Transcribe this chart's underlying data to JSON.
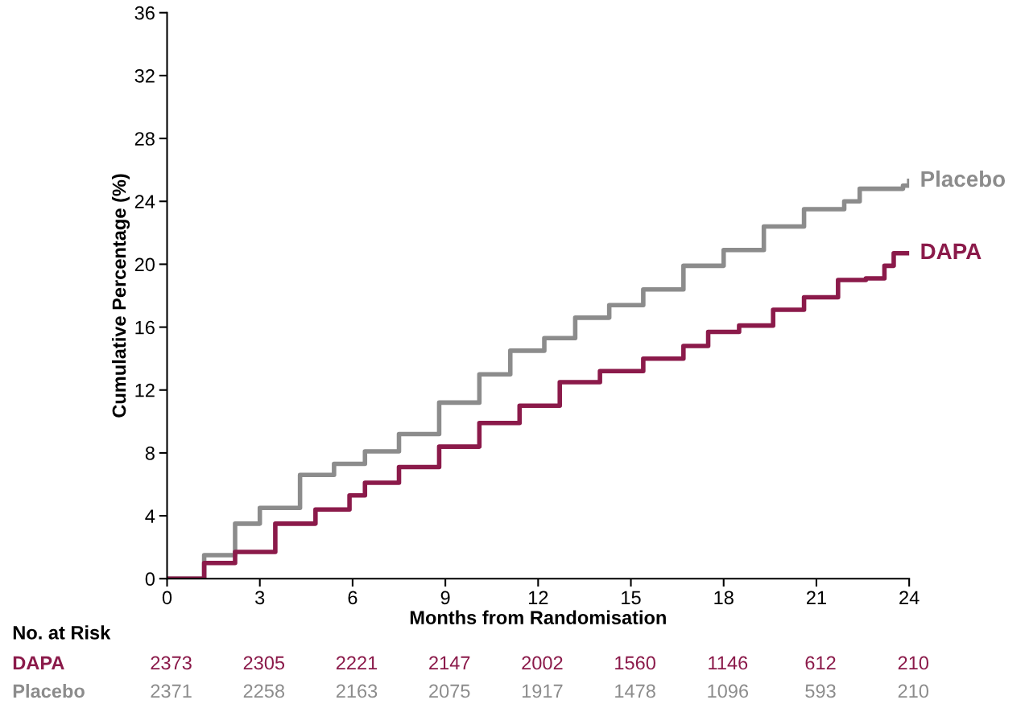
{
  "chart_data": {
    "type": "step",
    "xlabel": "Months from Randomisation",
    "ylabel": "Cumulative Percentage (%)",
    "xlim": [
      0,
      24
    ],
    "xticks": [
      0,
      3,
      6,
      9,
      12,
      15,
      18,
      21,
      24
    ],
    "ylim": [
      0,
      36
    ],
    "yticks": [
      0,
      4,
      8,
      12,
      16,
      20,
      24,
      28,
      32,
      36
    ],
    "grid": false,
    "legend": false,
    "series": [
      {
        "name": "Placebo",
        "color": "#8c8c8c",
        "x": [
          0,
          1.2,
          2.2,
          3.0,
          4.3,
          5.4,
          6.4,
          7.5,
          8.8,
          10.1,
          11.1,
          12.2,
          13.2,
          14.3,
          15.4,
          16.7,
          18.0,
          19.3,
          20.6,
          21.9,
          22.4,
          23.8,
          24.0
        ],
        "values": [
          0,
          1.5,
          3.5,
          4.5,
          6.6,
          7.3,
          8.1,
          9.2,
          11.2,
          13.0,
          14.5,
          15.3,
          16.6,
          17.4,
          18.4,
          19.9,
          20.9,
          22.4,
          23.5,
          24.0,
          24.8,
          25.0,
          25.3
        ]
      },
      {
        "name": "DAPA",
        "color": "#8b1a4a",
        "x": [
          0,
          1.2,
          2.2,
          3.5,
          4.8,
          5.9,
          6.4,
          7.5,
          8.8,
          10.1,
          11.4,
          12.7,
          14.0,
          15.4,
          16.7,
          17.5,
          18.5,
          19.6,
          20.6,
          21.7,
          22.6,
          23.2,
          23.5,
          24.0
        ],
        "values": [
          0,
          1.0,
          1.7,
          3.5,
          4.4,
          5.3,
          6.1,
          7.1,
          8.4,
          9.9,
          11.0,
          12.5,
          13.2,
          14.0,
          14.8,
          15.7,
          16.1,
          17.1,
          17.9,
          19.0,
          19.1,
          19.9,
          20.7,
          20.7
        ]
      }
    ],
    "annotations": [
      "No. at Risk",
      "DAPA",
      "2373",
      "2305",
      "2221",
      "2147",
      "2002",
      "1560",
      "1146",
      "612",
      "210",
      "Placebo",
      "2371",
      "2258",
      "2163",
      "2075",
      "1917",
      "1478",
      "1096",
      "593",
      "210"
    ]
  }
}
